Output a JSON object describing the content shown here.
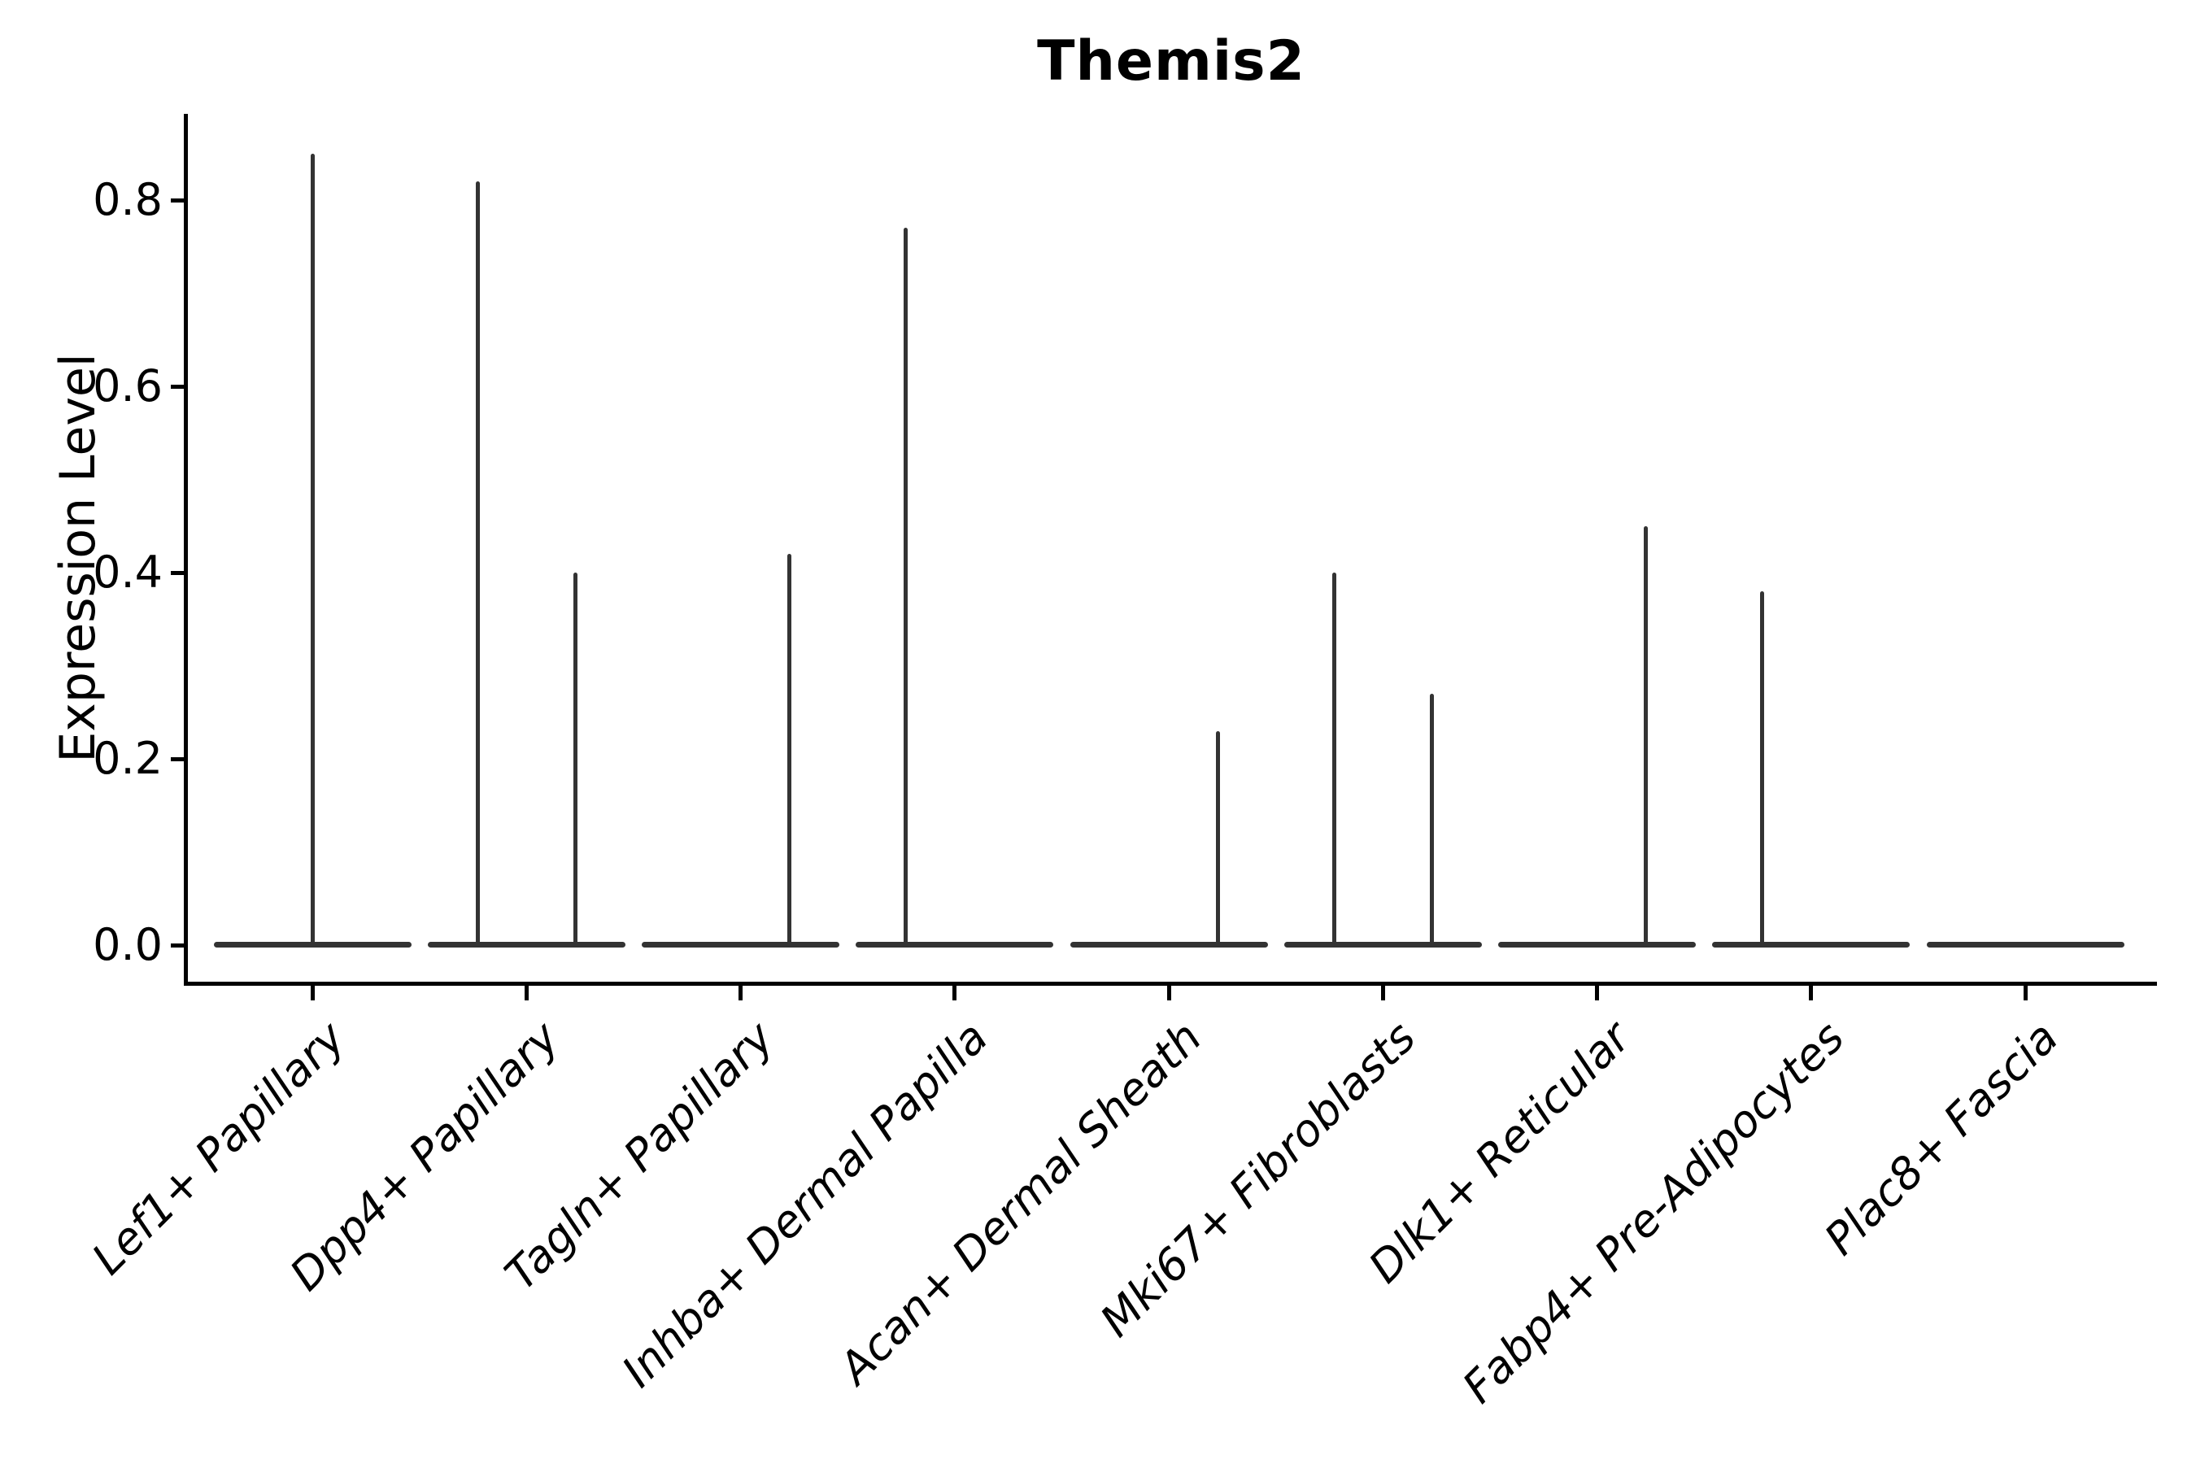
{
  "chart_data": {
    "type": "violin",
    "title": "Themis2",
    "xlabel": "",
    "ylabel": "Expression Level",
    "ylim": [
      -0.04,
      0.89
    ],
    "yticks": [
      0.0,
      0.2,
      0.4,
      0.6,
      0.8
    ],
    "ytick_labels": [
      "0.0",
      "0.2",
      "0.4",
      "0.6",
      "0.8"
    ],
    "grid": false,
    "legend": "none",
    "categories": [
      "Lef1+ Papillary",
      "Dpp4+ Papillary",
      "Tagln+ Papillary",
      "Inhba+ Dermal Papilla",
      "Acan+ Dermal Sheath",
      "Mki67+ Fibroblasts",
      "Dlk1+ Reticular",
      "Fabp4+ Pre-Adipocytes",
      "Plac8+ Fascia"
    ],
    "series": [
      {
        "category": "Lef1+ Papillary",
        "violins": [
          {
            "position": "center",
            "max_expression": 0.85
          }
        ]
      },
      {
        "category": "Dpp4+ Papillary",
        "violins": [
          {
            "position": "left",
            "max_expression": 0.82
          },
          {
            "position": "right",
            "max_expression": 0.4
          }
        ]
      },
      {
        "category": "Tagln+ Papillary",
        "violins": [
          {
            "position": "right",
            "max_expression": 0.42
          }
        ]
      },
      {
        "category": "Inhba+ Dermal Papilla",
        "violins": [
          {
            "position": "left",
            "max_expression": 0.77
          }
        ]
      },
      {
        "category": "Acan+ Dermal Sheath",
        "violins": [
          {
            "position": "right",
            "max_expression": 0.23
          }
        ]
      },
      {
        "category": "Mki67+ Fibroblasts",
        "violins": [
          {
            "position": "left",
            "max_expression": 0.4
          },
          {
            "position": "right",
            "max_expression": 0.27
          }
        ]
      },
      {
        "category": "Dlk1+ Reticular",
        "violins": [
          {
            "position": "right",
            "max_expression": 0.45
          }
        ]
      },
      {
        "category": "Fabp4+ Pre-Adipocytes",
        "violins": [
          {
            "position": "left",
            "max_expression": 0.38
          }
        ]
      },
      {
        "category": "Plac8+ Fascia",
        "violins": []
      }
    ],
    "baseline_bar": "every category shows a flat near-zero density bar at expression 0.0",
    "colors": {
      "violin": "#333333",
      "axis": "#000000",
      "text": "#000000"
    }
  }
}
